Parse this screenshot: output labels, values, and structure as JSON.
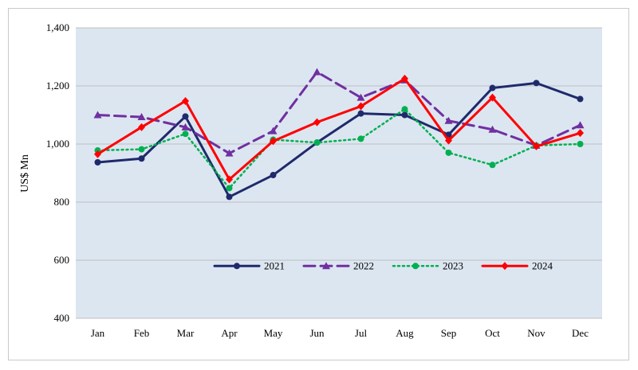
{
  "chart_data": {
    "type": "line",
    "title": "",
    "xlabel": "",
    "ylabel": "US$ Mn",
    "categories": [
      "Jan",
      "Feb",
      "Mar",
      "Apr",
      "May",
      "Jun",
      "Jul",
      "Aug",
      "Sep",
      "Oct",
      "Nov",
      "Dec"
    ],
    "ylim": [
      400,
      1400
    ],
    "yticks": [
      400,
      600,
      800,
      1000,
      1200,
      1400
    ],
    "ytick_labels": [
      "400",
      "600",
      "800",
      "1,000",
      "1,200",
      "1,400"
    ],
    "grid": true,
    "legend_placement": "inside-lower-right",
    "plot_background": "#dce6f1",
    "series": [
      {
        "name": "2021",
        "color": "#1f2a6b",
        "style": "solid",
        "marker": "circle",
        "values": [
          937,
          950,
          1095,
          818,
          893,
          1005,
          1105,
          1100,
          1032,
          1193,
          1210,
          1155
        ]
      },
      {
        "name": "2022",
        "color": "#7030a0",
        "style": "dashed",
        "marker": "triangle",
        "values": [
          1100,
          1093,
          1058,
          968,
          1045,
          1248,
          1160,
          1220,
          1080,
          1050,
          995,
          1065
        ]
      },
      {
        "name": "2023",
        "color": "#00b050",
        "style": "dotted",
        "marker": "circle",
        "values": [
          978,
          982,
          1035,
          848,
          1015,
          1005,
          1018,
          1120,
          970,
          928,
          995,
          1000
        ]
      },
      {
        "name": "2024",
        "color": "#ff0000",
        "style": "solid",
        "marker": "diamond",
        "values": [
          965,
          1058,
          1148,
          878,
          1010,
          1075,
          1130,
          1225,
          1012,
          1160,
          992,
          1038
        ]
      }
    ]
  }
}
